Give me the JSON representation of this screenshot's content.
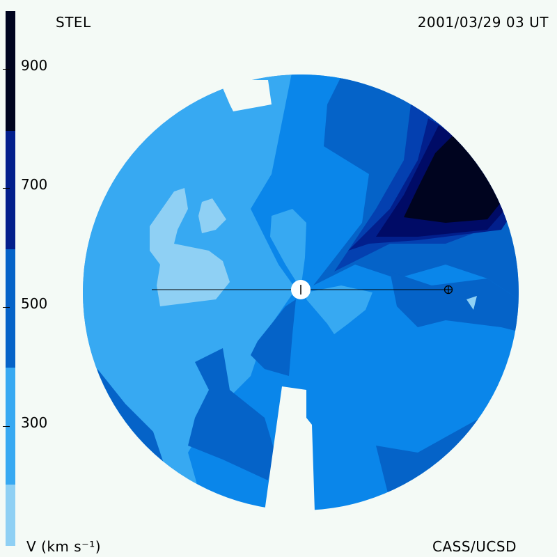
{
  "header": {
    "observatory": "STEL",
    "timestamp": "2001/03/29 03 UT"
  },
  "footer": {
    "units": "V (km s⁻¹)",
    "credit": "CASS/UCSD"
  },
  "colorbar": {
    "ticks": [
      "900",
      "700",
      "500",
      "300"
    ],
    "palette": [
      "#8fd0f4",
      "#37a9f2",
      "#0a86ea",
      "#0563c8",
      "#0440b0",
      "#021f8c",
      "#000b66",
      "#00041f"
    ]
  },
  "map": {
    "sun_marker": "sun-icon",
    "earth_marker": "earth-icon"
  }
}
